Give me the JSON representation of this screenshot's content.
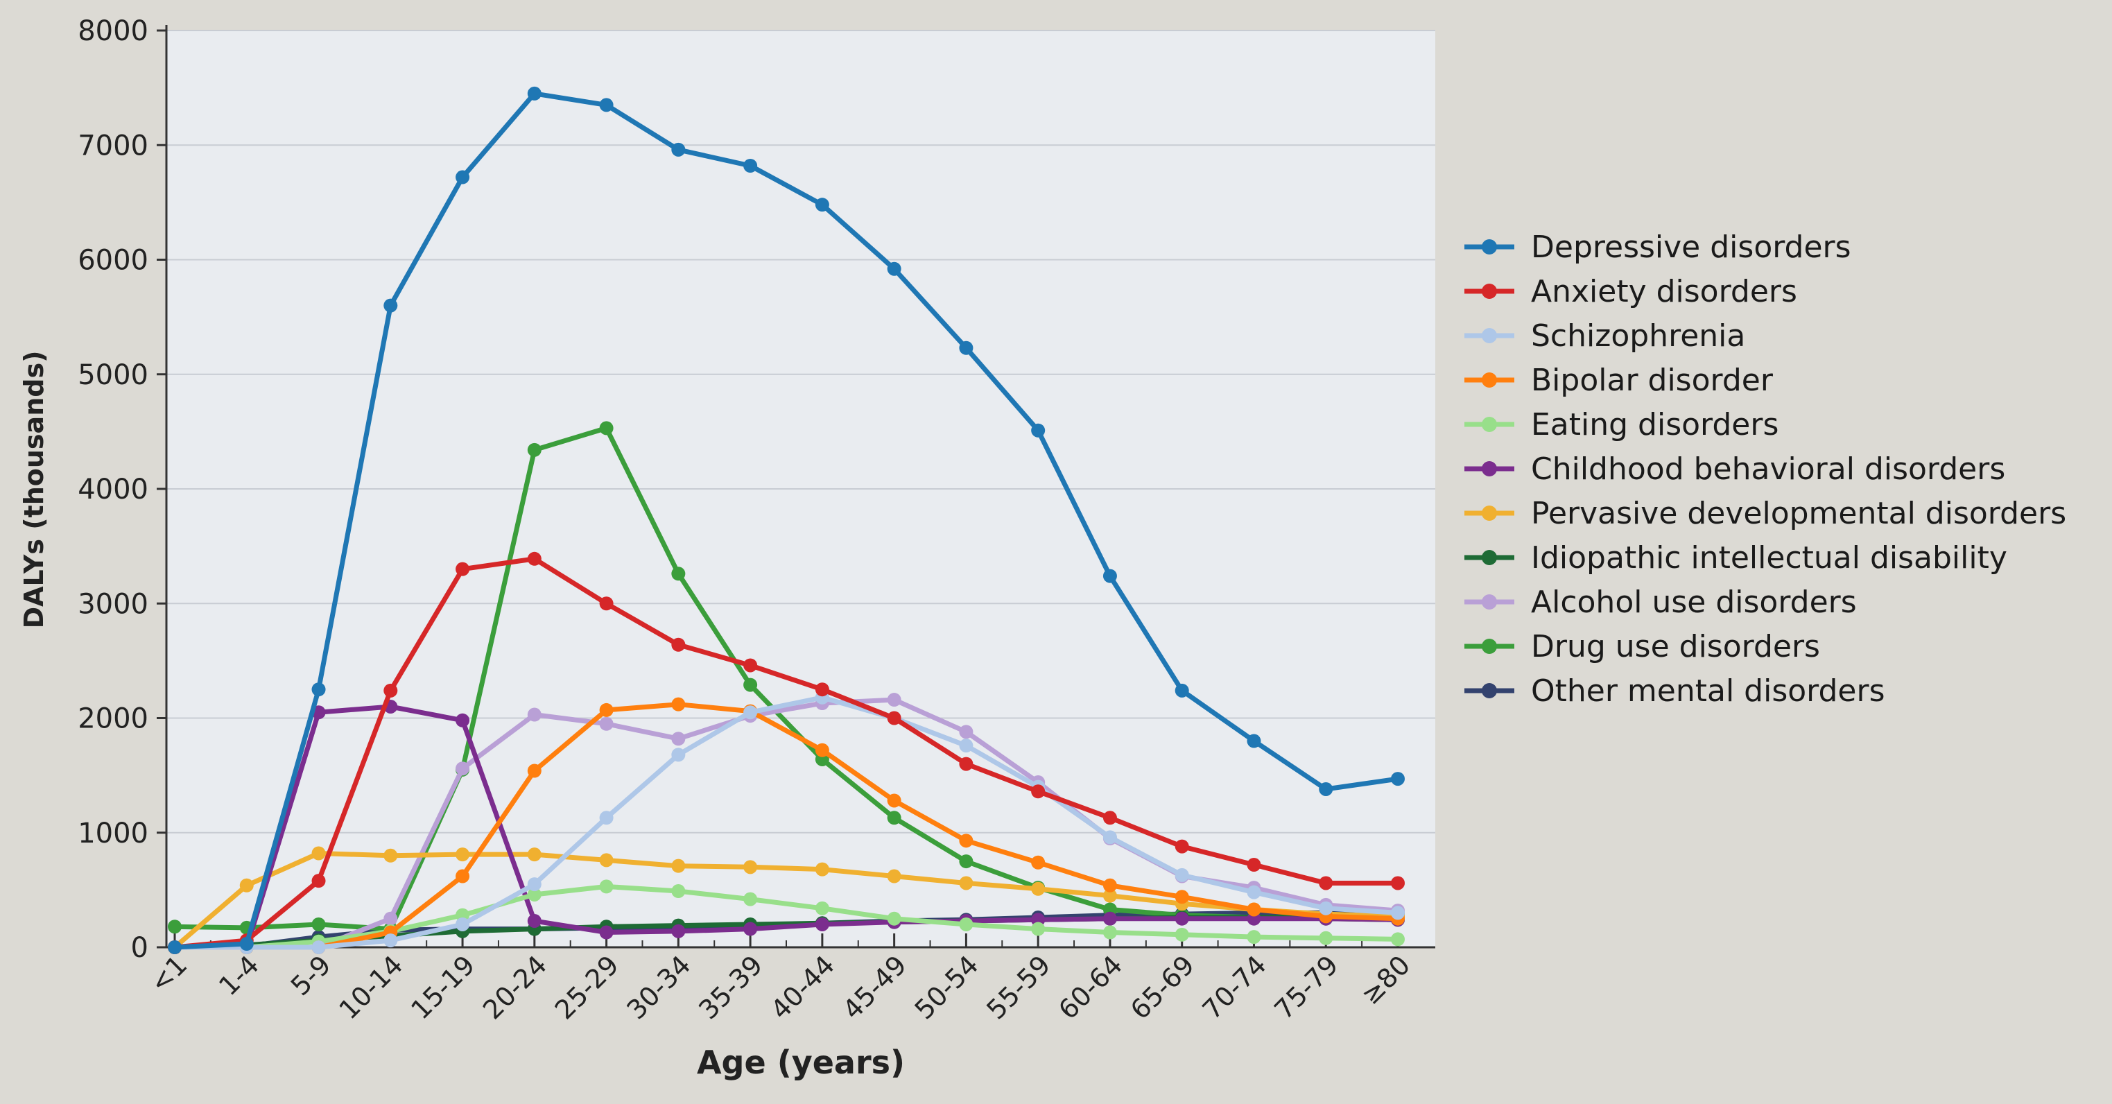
{
  "chart_data": {
    "type": "line",
    "xlabel": "Age (years)",
    "ylabel": "DALYs (thousands)",
    "ylim": [
      0,
      8000
    ],
    "yticks": [
      0,
      1000,
      2000,
      3000,
      4000,
      5000,
      6000,
      7000,
      8000
    ],
    "grid": true,
    "legend_position": "right",
    "categories": [
      "<1",
      "1-4",
      "5-9",
      "10-14",
      "15-19",
      "20-24",
      "25-29",
      "30-34",
      "35-39",
      "40-44",
      "45-49",
      "50-54",
      "55-59",
      "60-64",
      "65-69",
      "70-74",
      "75-79",
      "≥80"
    ],
    "series": [
      {
        "name": "Depressive disorders",
        "color": "#1f77b4",
        "values": [
          0,
          30,
          2250,
          5600,
          6720,
          7450,
          7350,
          6960,
          6820,
          6480,
          5920,
          5230,
          4510,
          3240,
          2240,
          1800,
          1380,
          1470
        ]
      },
      {
        "name": "Anxiety disorders",
        "color": "#d62728",
        "values": [
          0,
          60,
          580,
          2240,
          3300,
          3390,
          3000,
          2640,
          2460,
          2250,
          2000,
          1600,
          1360,
          1130,
          880,
          720,
          560,
          560
        ]
      },
      {
        "name": "Schizophrenia",
        "color": "#aec7e8",
        "values": [
          0,
          0,
          0,
          60,
          200,
          550,
          1130,
          1680,
          2050,
          2180,
          2000,
          1760,
          1400,
          960,
          630,
          480,
          340,
          300
        ]
      },
      {
        "name": "Bipolar disorder",
        "color": "#ff7f0e",
        "values": [
          0,
          0,
          0,
          130,
          620,
          1540,
          2070,
          2120,
          2060,
          1720,
          1280,
          930,
          740,
          540,
          440,
          330,
          270,
          250
        ]
      },
      {
        "name": "Eating disorders",
        "color": "#98df8a",
        "values": [
          0,
          0,
          50,
          140,
          280,
          460,
          530,
          490,
          420,
          340,
          250,
          200,
          160,
          130,
          110,
          90,
          80,
          70
        ]
      },
      {
        "name": "Childhood behavioral disorders",
        "color": "#7b2d8e",
        "values": [
          0,
          0,
          2050,
          2100,
          1980,
          230,
          130,
          140,
          160,
          200,
          220,
          230,
          240,
          250,
          250,
          250,
          250,
          240
        ]
      },
      {
        "name": "Pervasive developmental disorders",
        "color": "#f0b030",
        "values": [
          0,
          540,
          820,
          800,
          810,
          810,
          760,
          710,
          700,
          680,
          620,
          560,
          510,
          450,
          380,
          330,
          290,
          270
        ]
      },
      {
        "name": "Idiopathic intellectual disability",
        "color": "#1e6b35",
        "values": [
          0,
          20,
          60,
          100,
          140,
          160,
          180,
          190,
          200,
          210,
          220,
          230,
          240,
          250,
          260,
          260,
          270,
          270
        ]
      },
      {
        "name": "Alcohol use disorders",
        "color": "#b9a0d6",
        "values": [
          0,
          0,
          0,
          250,
          1560,
          2030,
          1950,
          1820,
          2020,
          2130,
          2160,
          1880,
          1440,
          950,
          620,
          520,
          370,
          320
        ]
      },
      {
        "name": "Drug use disorders",
        "color": "#3b9e3b",
        "values": [
          180,
          170,
          200,
          160,
          1550,
          4340,
          4530,
          3260,
          2290,
          1640,
          1130,
          750,
          520,
          330,
          280,
          260,
          250,
          240
        ]
      },
      {
        "name": "Other mental disorders",
        "color": "#33426e",
        "values": [
          0,
          10,
          90,
          150,
          160,
          160,
          170,
          180,
          190,
          210,
          230,
          240,
          260,
          280,
          290,
          300,
          300,
          300
        ]
      }
    ]
  }
}
